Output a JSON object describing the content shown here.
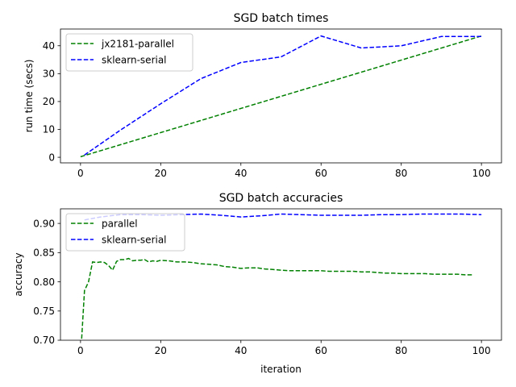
{
  "chart_data": [
    {
      "type": "line",
      "title": "SGD batch times",
      "xlabel": "",
      "ylabel": "run time (secs)",
      "xlim": [
        -5,
        105
      ],
      "ylim": [
        -2,
        46
      ],
      "xticks": [
        0,
        20,
        40,
        60,
        80,
        100
      ],
      "yticks": [
        0,
        10,
        20,
        30,
        40
      ],
      "legend": "top-left",
      "series": [
        {
          "name": "jx2181-parallel",
          "color": "#008000",
          "x": [
            0,
            100
          ],
          "y": [
            0.2,
            43.5
          ]
        },
        {
          "name": "sklearn-serial",
          "color": "#0000ff",
          "x": [
            1,
            10,
            20,
            30,
            40,
            50,
            60,
            70,
            80,
            90,
            100
          ],
          "y": [
            0.8,
            9.8,
            19.2,
            28.2,
            34.0,
            36.0,
            43.5,
            39.2,
            40.0,
            43.3,
            43.3
          ]
        }
      ]
    },
    {
      "type": "line",
      "title": "SGD batch accuracies",
      "xlabel": "iteration",
      "ylabel": "accuracy",
      "xlim": [
        -5,
        105
      ],
      "ylim": [
        0.7,
        0.925
      ],
      "xticks": [
        0,
        20,
        40,
        60,
        80,
        100
      ],
      "yticks": [
        "0.70",
        "0.75",
        "0.80",
        "0.85",
        "0.90"
      ],
      "legend": "top-left",
      "series": [
        {
          "name": "parallel",
          "color": "#008000",
          "x": [
            0,
            1,
            2,
            3,
            4,
            5,
            6,
            7,
            8,
            9,
            10,
            11,
            12,
            13,
            14,
            15,
            16,
            17,
            18,
            19,
            20,
            22,
            24,
            26,
            28,
            30,
            32,
            34,
            36,
            38,
            40,
            42,
            44,
            46,
            48,
            50,
            52,
            54,
            56,
            58,
            60,
            62,
            64,
            66,
            68,
            70,
            72,
            74,
            76,
            78,
            80,
            82,
            84,
            86,
            88,
            90,
            92,
            94,
            96,
            98
          ],
          "y": [
            0.67,
            0.785,
            0.8,
            0.834,
            0.833,
            0.834,
            0.833,
            0.828,
            0.82,
            0.835,
            0.838,
            0.838,
            0.84,
            0.836,
            0.837,
            0.837,
            0.838,
            0.834,
            0.836,
            0.835,
            0.837,
            0.836,
            0.834,
            0.834,
            0.833,
            0.831,
            0.83,
            0.829,
            0.826,
            0.825,
            0.823,
            0.824,
            0.824,
            0.822,
            0.821,
            0.82,
            0.819,
            0.819,
            0.819,
            0.819,
            0.819,
            0.818,
            0.818,
            0.818,
            0.818,
            0.817,
            0.817,
            0.816,
            0.815,
            0.815,
            0.814,
            0.814,
            0.814,
            0.814,
            0.813,
            0.813,
            0.813,
            0.813,
            0.812,
            0.812
          ]
        },
        {
          "name": "sklearn-serial",
          "color": "#0000ff",
          "x": [
            1,
            5,
            10,
            15,
            20,
            25,
            30,
            35,
            40,
            45,
            50,
            55,
            60,
            65,
            70,
            75,
            80,
            85,
            90,
            95,
            100
          ],
          "y": [
            0.906,
            0.911,
            0.915,
            0.915,
            0.914,
            0.915,
            0.916,
            0.914,
            0.911,
            0.913,
            0.916,
            0.915,
            0.914,
            0.914,
            0.914,
            0.915,
            0.915,
            0.916,
            0.916,
            0.916,
            0.915
          ]
        }
      ]
    }
  ]
}
